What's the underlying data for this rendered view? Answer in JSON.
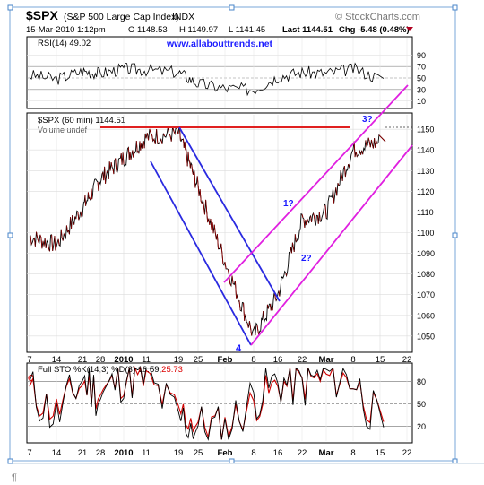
{
  "header": {
    "symbol": "$SPX",
    "index_name": "(S&P 500 Large Cap Index)",
    "exchange": "INDX",
    "brand": "© StockCharts.com",
    "date": "15-Mar-2010 1:12pm",
    "open": "O 1148.53",
    "high": "H 1149.97",
    "low": "L 1141.45",
    "last": "Last 1144.51",
    "change": "Chg -5.48 (0.48%)",
    "url": "www.allabouttrends.net"
  },
  "rsi_panel": {
    "legend": "RSI(14) 49.02",
    "ticks": [
      "90",
      "70",
      "50",
      "30",
      "10"
    ]
  },
  "price_panel": {
    "legend": "$SPX (60 min) 1144.51",
    "volume_legend": "Volume undef",
    "last_value": "1150",
    "ticks": [
      "1150",
      "1140",
      "1130",
      "1120",
      "1110",
      "1100",
      "1090",
      "1080",
      "1070",
      "1060",
      "1050"
    ]
  },
  "sto_panel": {
    "legend_main": "Full STO %K(14,3) %D(3) 18.59,",
    "legend_value": "25.73",
    "side_label": "C",
    "ticks": [
      "80",
      "50",
      "20"
    ]
  },
  "x_axis": {
    "labels": [
      "7",
      "14",
      "21",
      "28",
      "2010",
      "11",
      "19",
      "25",
      "Feb",
      "8",
      "16",
      "22",
      "Mar",
      "8",
      "15",
      "22"
    ]
  },
  "annotations": {
    "wave_1": "1?",
    "wave_2": "2?",
    "wave_3": "3?",
    "wave_4": "4"
  },
  "colors": {
    "background": "#ffffff",
    "border": "#000000",
    "grid": "#d0d0d0",
    "price_line": "#000000",
    "price_down": "#8b0000",
    "blue_channel": "#2a2ae0",
    "magenta_channel": "#e020e0",
    "resistance": "#e02020",
    "label_blue": "#1a1aff",
    "brand": "#777777"
  },
  "chart_data": [
    {
      "type": "line",
      "title": "$SPX (60 min) 1144.51",
      "x": [
        "Dec 7",
        "Dec 14",
        "Dec 21",
        "Dec 28",
        "Jan 4 2010",
        "Jan 11",
        "Jan 19",
        "Jan 25",
        "Feb 1",
        "Feb 8",
        "Feb 16",
        "Feb 22",
        "Mar 1",
        "Mar 8",
        "Mar 15"
      ],
      "series": [
        {
          "values": [
            1098,
            1094,
            1112,
            1126,
            1136,
            1146,
            1148,
            1122,
            1086,
            1050,
            1070,
            1106,
            1110,
            1140,
            1144
          ]
        }
      ],
      "ylim": [
        1043,
        1157
      ],
      "resistance_level": 1150
    },
    {
      "type": "line",
      "title": "RSI(14) 49.02",
      "ylim": [
        0,
        100
      ],
      "reference_lines": [
        70,
        50,
        30
      ],
      "series": [
        {
          "values": [
            55,
            48,
            62,
            58,
            66,
            64,
            60,
            40,
            32,
            30,
            52,
            60,
            58,
            66,
            49
          ]
        }
      ]
    },
    {
      "type": "line",
      "title": "Full STO %K(14,3) %D(3) 18.59, 25.73",
      "ylim": [
        0,
        100
      ],
      "reference_lines": [
        80,
        50,
        20
      ],
      "series": [
        {
          "values": [
            70,
            30,
            85,
            60,
            88,
            85,
            30,
            20,
            15,
            60,
            80,
            75,
            90,
            85,
            18.59
          ]
        },
        {
          "values": [
            65,
            40,
            78,
            65,
            85,
            80,
            40,
            25,
            20,
            50,
            75,
            78,
            85,
            82,
            25.73
          ]
        }
      ]
    }
  ]
}
